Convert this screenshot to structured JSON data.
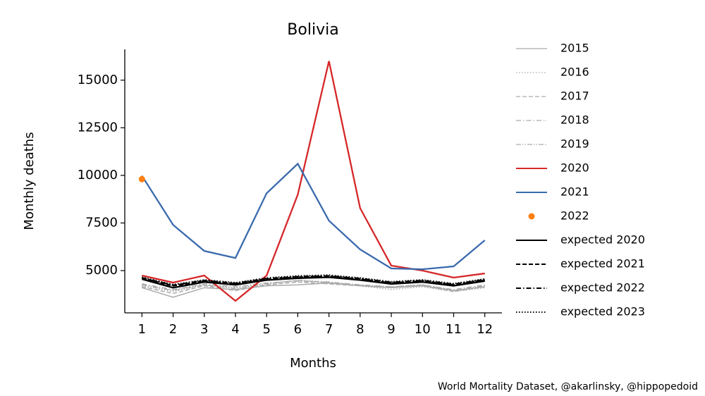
{
  "chart_data": {
    "type": "line",
    "title": "Bolivia",
    "xlabel": "Months",
    "ylabel": "Monthly deaths",
    "annotation": "World Mortality Dataset, @akarlinsky, @hippopedoid",
    "x": [
      1,
      2,
      3,
      4,
      5,
      6,
      7,
      8,
      9,
      10,
      11,
      12
    ],
    "xlim": [
      0.45,
      12.55
    ],
    "xticks": [
      1,
      2,
      3,
      4,
      5,
      6,
      7,
      8,
      9,
      10,
      11,
      12
    ],
    "ylim": [
      2780,
      16620
    ],
    "yticks": [
      5000,
      7500,
      10000,
      12500,
      15000
    ],
    "legend": "outside-right",
    "series": [
      {
        "name": "2015",
        "color": "#aaaaaa",
        "label_color": "#aaaaaa",
        "linestyle": "solid",
        "values": [
          4100,
          3600,
          4100,
          4000,
          4200,
          4250,
          4350,
          4200,
          4100,
          4200,
          3950,
          4150
        ]
      },
      {
        "name": "2016",
        "color": "#aaaaaa",
        "label_color": "#aaaaaa",
        "linestyle": "dotted",
        "values": [
          4200,
          3900,
          4250,
          4100,
          4300,
          4500,
          4400,
          4200,
          4000,
          4150,
          3900,
          4100
        ]
      },
      {
        "name": "2017",
        "color": "#aaaaaa",
        "label_color": "#aaaaaa",
        "linestyle": "dashed",
        "values": [
          4150,
          3800,
          4200,
          3950,
          4250,
          4400,
          4300,
          4200,
          4100,
          4200,
          3900,
          4150
        ]
      },
      {
        "name": "2018",
        "color": "#aaaaaa",
        "label_color": "#aaaaaa",
        "linestyle": "dashdot",
        "values": [
          4300,
          4000,
          4300,
          4150,
          4350,
          4450,
          4400,
          4250,
          4150,
          4250,
          4000,
          4250
        ]
      },
      {
        "name": "2019",
        "color": "#aaaaaa",
        "label_color": "#aaaaaa",
        "linestyle": "dashdotdot",
        "values": [
          4250,
          3950,
          4250,
          4050,
          4300,
          4500,
          4350,
          4250,
          4150,
          4250,
          3950,
          4200
        ]
      },
      {
        "name": "2020",
        "color": "#d62728",
        "label_color": "#000000",
        "linestyle": "solid",
        "values": [
          4740,
          4370,
          4740,
          3410,
          4740,
          8990,
          16000,
          8280,
          5260,
          5000,
          4630,
          4850
        ]
      },
      {
        "name": "2021",
        "color": "#3a6aad",
        "label_color": "#000000",
        "linestyle": "solid",
        "values": [
          9980,
          7400,
          6030,
          5660,
          9060,
          10610,
          7620,
          6110,
          5110,
          5070,
          5220,
          6590
        ]
      },
      {
        "name": "2022",
        "color": "#ff7f0e",
        "label_color": "#000000",
        "linestyle": "none",
        "marker": "o",
        "values": [
          9800,
          null,
          null,
          null,
          null,
          null,
          null,
          null,
          null,
          null,
          null,
          null
        ]
      },
      {
        "name": "expected 2020",
        "color": "#000000",
        "label_color": "#000000",
        "linestyle": "solid",
        "values": [
          4550,
          4100,
          4400,
          4250,
          4500,
          4600,
          4650,
          4500,
          4300,
          4400,
          4200,
          4450
        ]
      },
      {
        "name": "expected 2021",
        "color": "#000000",
        "label_color": "#000000",
        "linestyle": "dashed",
        "values": [
          4600,
          4200,
          4450,
          4300,
          4550,
          4650,
          4700,
          4550,
          4350,
          4450,
          4250,
          4500
        ]
      },
      {
        "name": "expected 2022",
        "color": "#000000",
        "label_color": "#000000",
        "linestyle": "dashdot",
        "values": [
          4620,
          4230,
          4480,
          4330,
          4580,
          4680,
          4720,
          4580,
          4380,
          4480,
          4280,
          4530
        ]
      },
      {
        "name": "expected 2023",
        "color": "#000000",
        "label_color": "#000000",
        "linestyle": "dotted",
        "values": [
          4650,
          4260,
          4510,
          4360,
          4610,
          4720,
          4760,
          4610,
          4410,
          4510,
          4310,
          4560
        ]
      }
    ]
  }
}
